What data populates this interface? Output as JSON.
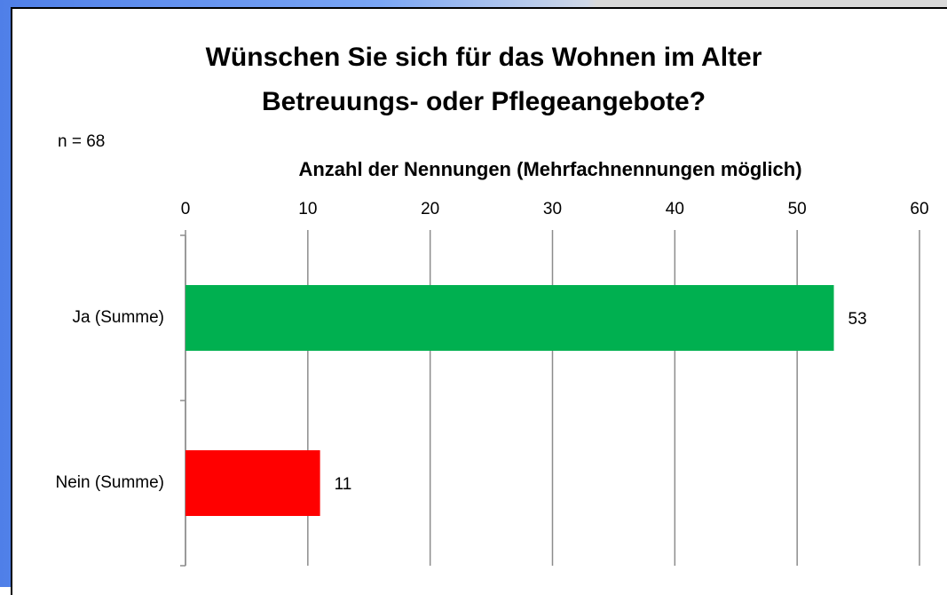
{
  "chart_data": {
    "type": "bar",
    "orientation": "horizontal",
    "title": "Wünschen Sie sich für das Wohnen im Alter Betreuungs- oder Pflegeangebote?",
    "annotation": "n = 68",
    "x_label": "Anzahl der Nennungen (Mehrfachnennungen möglich)",
    "categories": [
      "Ja (Summe)",
      "Nein (Summe)"
    ],
    "values": [
      53,
      11
    ],
    "colors": [
      "#00b050",
      "#ff0000"
    ],
    "xlim": [
      0,
      60
    ],
    "xticks": [
      0,
      10,
      20,
      30,
      40,
      50,
      60
    ],
    "grid": true
  }
}
